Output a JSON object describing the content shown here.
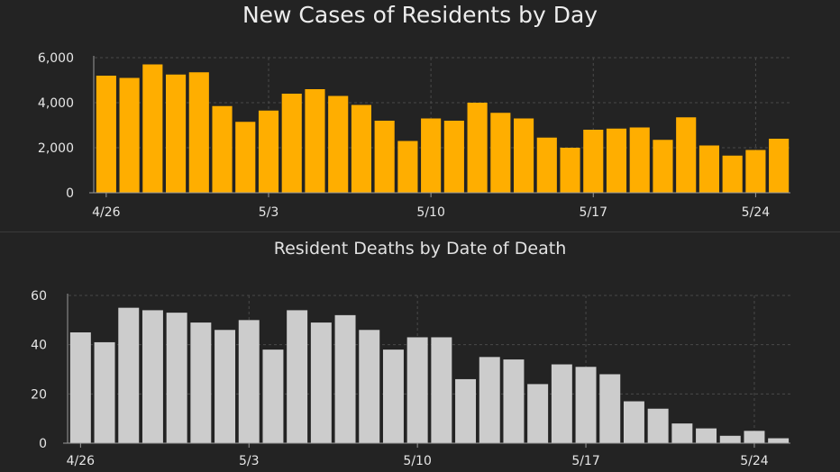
{
  "chart_data": [
    {
      "type": "bar",
      "title": "New Cases of Residents by Day",
      "color": "#FFAE00",
      "ylim": [
        0,
        6000
      ],
      "yticks": [
        0,
        2000,
        4000,
        6000
      ],
      "ytick_labels": [
        "0",
        "2,000",
        "4,000",
        "6,000"
      ],
      "xtick_labels": [
        "4/26",
        "5/3",
        "5/10",
        "5/17",
        "5/24"
      ],
      "xtick_indices": [
        0,
        7,
        14,
        21,
        28
      ],
      "grid": true,
      "values": [
        5200,
        5100,
        5700,
        5250,
        5350,
        3850,
        3150,
        3650,
        4400,
        4600,
        4300,
        3900,
        3200,
        2300,
        3300,
        3200,
        4000,
        3550,
        3300,
        2450,
        2000,
        2800,
        2850,
        2900,
        2350,
        3350,
        2100,
        1650,
        1900,
        2400
      ]
    },
    {
      "type": "bar",
      "title": "Resident Deaths by Date of Death",
      "color": "#CCCCCC",
      "ylim": [
        0,
        60
      ],
      "yticks": [
        0,
        20,
        40,
        60
      ],
      "ytick_labels": [
        "0",
        "20",
        "40",
        "60"
      ],
      "xtick_labels": [
        "4/26",
        "5/3",
        "5/10",
        "5/17",
        "5/24"
      ],
      "xtick_indices": [
        0,
        7,
        14,
        21,
        28
      ],
      "grid": true,
      "values": [
        45,
        41,
        55,
        54,
        53,
        49,
        46,
        50,
        38,
        54,
        49,
        52,
        46,
        38,
        43,
        43,
        26,
        35,
        34,
        24,
        32,
        31,
        28,
        17,
        14,
        8,
        6,
        3,
        5,
        2
      ]
    }
  ]
}
